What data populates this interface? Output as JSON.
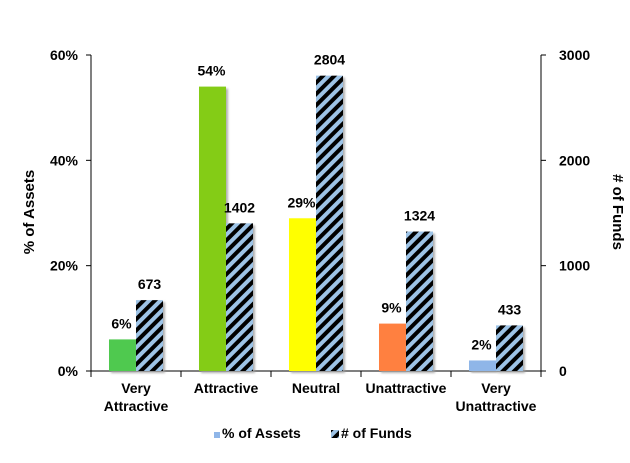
{
  "chart_data": {
    "type": "bar",
    "categories": [
      [
        "Very",
        "Attractive"
      ],
      [
        "Attractive"
      ],
      [
        "Neutral"
      ],
      [
        "Unattractive"
      ],
      [
        "Very",
        "Unattractive"
      ]
    ],
    "series": [
      {
        "name": "% of Assets",
        "axis": "left",
        "values": [
          6,
          54,
          29,
          9,
          2
        ],
        "labels": [
          "6%",
          "54%",
          "29%",
          "9%",
          "2%"
        ],
        "colors": [
          "#4fc94f",
          "#84cc16",
          "#ffff00",
          "#ff8040",
          "#8fb6e8"
        ]
      },
      {
        "name": "# of Funds",
        "axis": "right",
        "values": [
          673,
          1402,
          2804,
          1324,
          433
        ],
        "labels": [
          "673",
          "1402",
          "2804",
          "1324",
          "433"
        ],
        "pattern": "diagonal-hatch",
        "colors": [
          "#000000",
          "#9dc3e6"
        ]
      }
    ],
    "y_left": {
      "label": "% of Assets",
      "ylim": [
        0,
        60
      ],
      "ticks": [
        0,
        20,
        40,
        60
      ],
      "tick_labels": [
        "0%",
        "20%",
        "40%",
        "60%"
      ]
    },
    "y_right": {
      "label": "# of Funds",
      "ylim": [
        0,
        3000
      ],
      "ticks": [
        0,
        1000,
        2000,
        3000
      ],
      "tick_labels": [
        "0",
        "1000",
        "2000",
        "3000"
      ]
    },
    "legend": {
      "placement": "bottom",
      "items": [
        "% of Assets",
        "# of Funds"
      ]
    },
    "grid": false
  }
}
